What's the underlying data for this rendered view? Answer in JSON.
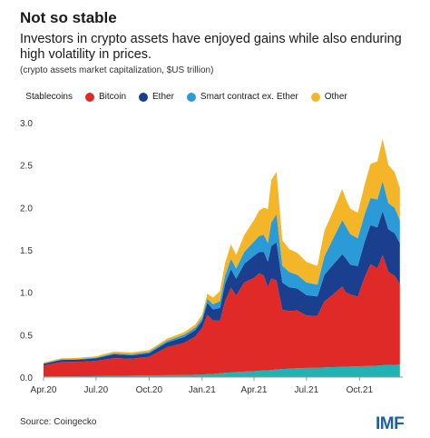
{
  "header": {
    "title": "Not so stable",
    "subtitle": "Investors in crypto assets have enjoyed gains while also enduring high volatility in prices.",
    "units": "(crypto assets market capitalization, $US trillion)"
  },
  "footer": {
    "source": "Source: Coingecko",
    "logo": "IMF"
  },
  "colors": {
    "stablecoins": "#1fb3b3",
    "bitcoin": "#e02a27",
    "ether": "#1a3f8f",
    "smart_contract": "#2b9bd8",
    "other": "#f4b528"
  },
  "chart_data": {
    "type": "area",
    "stacked": true,
    "x": [
      "2020-04-01",
      "2020-05-01",
      "2020-06-01",
      "2020-07-01",
      "2020-08-01",
      "2020-09-01",
      "2020-10-01",
      "2020-11-01",
      "2020-12-01",
      "2020-12-20",
      "2021-01-01",
      "2021-01-10",
      "2021-01-20",
      "2021-02-01",
      "2021-02-10",
      "2021-02-20",
      "2021-03-01",
      "2021-03-15",
      "2021-04-01",
      "2021-04-10",
      "2021-04-18",
      "2021-04-25",
      "2021-05-01",
      "2021-05-10",
      "2021-05-20",
      "2021-06-01",
      "2021-06-15",
      "2021-07-01",
      "2021-07-20",
      "2021-08-01",
      "2021-08-15",
      "2021-09-01",
      "2021-09-07",
      "2021-09-15",
      "2021-09-28",
      "2021-10-10",
      "2021-10-20",
      "2021-11-01",
      "2021-11-10",
      "2021-11-20",
      "2021-12-01",
      "2021-12-10"
    ],
    "x_ticks": [
      "Apr.20",
      "Jul.20",
      "Oct.20",
      "Jan.21",
      "Apr.21",
      "Jul.21",
      "Oct.21"
    ],
    "y_ticks": [
      "0.0",
      "0.5",
      "1.0",
      "1.5",
      "2.0",
      "2.5",
      "3.0"
    ],
    "ylim": [
      0,
      3.0
    ],
    "legend_position": "top",
    "grid": false,
    "series": [
      {
        "name": "Stablecoins",
        "color_key": "stablecoins",
        "values": [
          0.006,
          0.008,
          0.01,
          0.012,
          0.014,
          0.017,
          0.02,
          0.022,
          0.025,
          0.028,
          0.03,
          0.034,
          0.038,
          0.045,
          0.05,
          0.055,
          0.06,
          0.065,
          0.07,
          0.075,
          0.078,
          0.08,
          0.085,
          0.09,
          0.095,
          0.1,
          0.105,
          0.108,
          0.11,
          0.115,
          0.118,
          0.12,
          0.122,
          0.125,
          0.128,
          0.13,
          0.132,
          0.135,
          0.14,
          0.142,
          0.145,
          0.148
        ]
      },
      {
        "name": "Bitcoin",
        "color_key": "bitcoin",
        "values": [
          0.13,
          0.17,
          0.17,
          0.18,
          0.21,
          0.2,
          0.22,
          0.33,
          0.38,
          0.45,
          0.55,
          0.7,
          0.63,
          0.62,
          0.85,
          1.0,
          0.9,
          1.05,
          1.1,
          1.15,
          1.12,
          0.98,
          1.08,
          1.05,
          0.7,
          0.68,
          0.68,
          0.62,
          0.61,
          0.78,
          0.85,
          0.95,
          0.88,
          0.85,
          0.82,
          1.05,
          1.2,
          1.15,
          1.3,
          1.1,
          1.05,
          0.95
        ]
      },
      {
        "name": "Ether",
        "color_key": "ether",
        "values": [
          0.02,
          0.025,
          0.027,
          0.03,
          0.045,
          0.04,
          0.042,
          0.055,
          0.07,
          0.075,
          0.08,
          0.14,
          0.13,
          0.15,
          0.2,
          0.22,
          0.2,
          0.22,
          0.26,
          0.25,
          0.28,
          0.3,
          0.38,
          0.45,
          0.32,
          0.28,
          0.26,
          0.24,
          0.23,
          0.31,
          0.35,
          0.38,
          0.4,
          0.35,
          0.36,
          0.42,
          0.46,
          0.48,
          0.52,
          0.5,
          0.5,
          0.48
        ]
      },
      {
        "name": "Smart contract ex. Ether",
        "color_key": "smart_contract",
        "values": [
          0.005,
          0.006,
          0.007,
          0.008,
          0.012,
          0.014,
          0.015,
          0.02,
          0.025,
          0.03,
          0.035,
          0.05,
          0.06,
          0.08,
          0.1,
          0.12,
          0.12,
          0.14,
          0.17,
          0.19,
          0.2,
          0.22,
          0.28,
          0.33,
          0.2,
          0.18,
          0.16,
          0.15,
          0.14,
          0.22,
          0.3,
          0.4,
          0.38,
          0.36,
          0.33,
          0.32,
          0.32,
          0.33,
          0.35,
          0.31,
          0.3,
          0.27
        ]
      },
      {
        "name": "Other",
        "color_key": "other",
        "values": [
          0.01,
          0.012,
          0.013,
          0.015,
          0.02,
          0.02,
          0.02,
          0.025,
          0.03,
          0.035,
          0.04,
          0.06,
          0.08,
          0.12,
          0.15,
          0.17,
          0.16,
          0.2,
          0.25,
          0.3,
          0.32,
          0.4,
          0.5,
          0.5,
          0.3,
          0.27,
          0.26,
          0.24,
          0.22,
          0.3,
          0.32,
          0.37,
          0.32,
          0.3,
          0.3,
          0.35,
          0.4,
          0.45,
          0.5,
          0.45,
          0.42,
          0.38
        ]
      }
    ]
  }
}
